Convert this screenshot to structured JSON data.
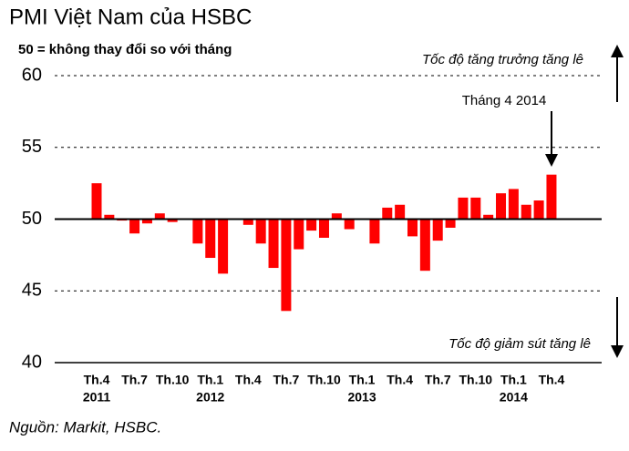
{
  "chart_data": {
    "type": "bar",
    "title": "PMI Việt Nam của HSBC",
    "subtitle": "50 = không thay đổi so với tháng",
    "source": "Nguồn: Markit, HSBC.",
    "annotations": {
      "up": "Tốc độ tăng trưởng tăng lê",
      "down": "Tốc độ giảm sút tăng lê",
      "latest": "Tháng 4 2014"
    },
    "categories": [
      "Th.4",
      null,
      null,
      "Th.7",
      null,
      null,
      "Th.10",
      null,
      null,
      "Th.1",
      null,
      null,
      "Th.4",
      null,
      null,
      "Th.7",
      null,
      null,
      "Th.10",
      null,
      null,
      "Th.1",
      null,
      null,
      "Th.4",
      null,
      null,
      "Th.7",
      null,
      null,
      "Th.10",
      null,
      null,
      "Th.1",
      null,
      null,
      "Th.4"
    ],
    "category_years": [
      "2011",
      null,
      null,
      null,
      null,
      null,
      null,
      null,
      null,
      "2012",
      null,
      null,
      null,
      null,
      null,
      null,
      null,
      null,
      null,
      null,
      null,
      "2013",
      null,
      null,
      null,
      null,
      null,
      null,
      null,
      null,
      null,
      null,
      null,
      "2014",
      null,
      null,
      null
    ],
    "values": [
      52.5,
      50.3,
      49.9,
      49.0,
      49.7,
      50.4,
      49.8,
      50.0,
      48.3,
      47.3,
      46.2,
      50.0,
      49.6,
      48.3,
      46.6,
      43.6,
      47.9,
      49.2,
      48.7,
      50.4,
      49.3,
      50.0,
      48.3,
      50.8,
      51.0,
      48.8,
      46.4,
      48.5,
      49.4,
      51.5,
      51.5,
      50.3,
      51.8,
      52.1,
      51.0,
      51.3,
      53.1
    ],
    "color": "#ff0000",
    "baseline": 50,
    "ylim": [
      40,
      60
    ],
    "yticks": [
      40,
      45,
      50,
      55,
      60
    ],
    "grid": true
  }
}
